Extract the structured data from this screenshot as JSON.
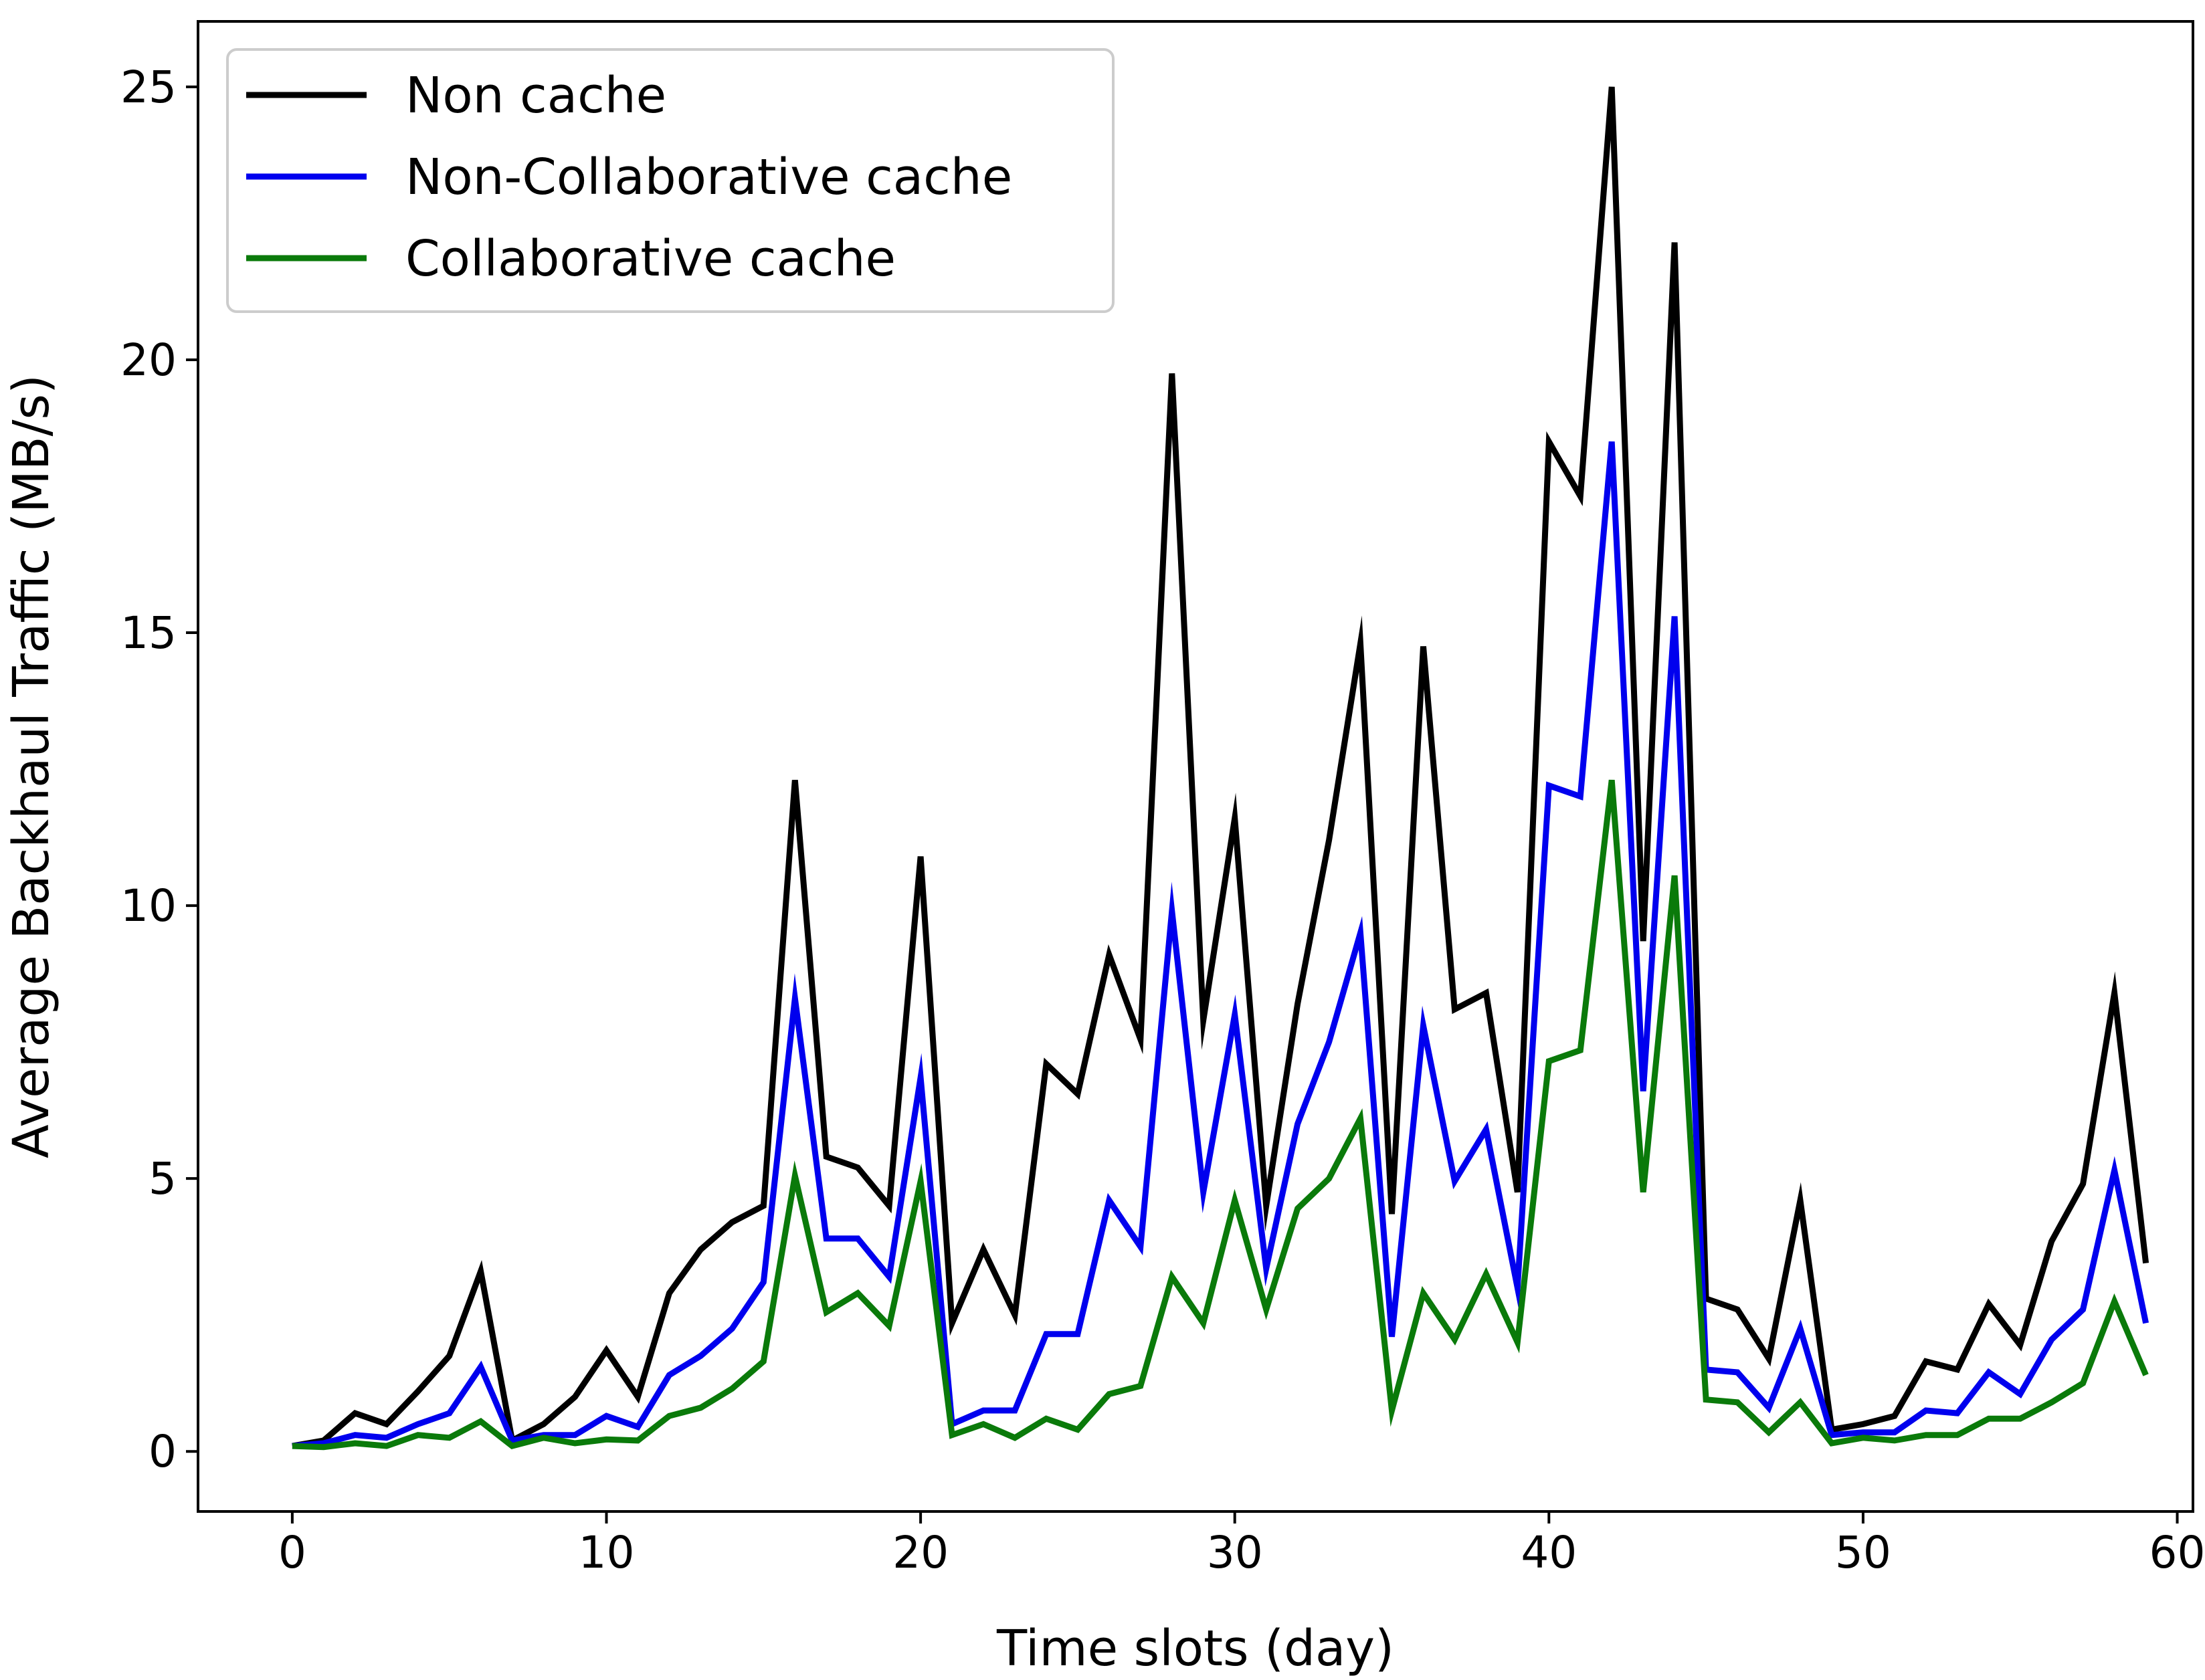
{
  "chart_data": {
    "type": "line",
    "title": "",
    "xlabel": "Time slots (day)",
    "ylabel": "Average Backhaul Traffic (MB/s)",
    "xlim": [
      -3,
      60.5
    ],
    "ylim": [
      -1.1,
      26.2
    ],
    "xticks": [
      0,
      10,
      20,
      30,
      40,
      50,
      60
    ],
    "yticks": [
      0,
      5,
      10,
      15,
      20,
      25
    ],
    "grid": false,
    "legend_position": "top-left",
    "x": [
      0,
      1,
      2,
      3,
      4,
      5,
      6,
      7,
      8,
      9,
      10,
      11,
      12,
      13,
      14,
      15,
      16,
      17,
      18,
      19,
      20,
      21,
      22,
      23,
      24,
      25,
      26,
      27,
      28,
      29,
      30,
      31,
      32,
      33,
      34,
      35,
      36,
      37,
      38,
      39,
      40,
      41,
      42,
      43,
      44,
      45,
      46,
      47,
      48,
      49,
      50,
      51,
      52,
      53,
      54,
      55,
      56,
      57,
      58,
      59
    ],
    "series": [
      {
        "name": "Non cache",
        "color": "#000000",
        "values": [
          0.1,
          0.2,
          0.7,
          0.5,
          1.1,
          1.75,
          3.3,
          0.2,
          0.5,
          1.0,
          1.85,
          1.0,
          2.9,
          3.7,
          4.2,
          4.5,
          12.3,
          5.4,
          5.2,
          4.5,
          10.9,
          2.35,
          3.7,
          2.5,
          7.1,
          6.55,
          9.1,
          7.55,
          19.75,
          7.9,
          11.6,
          4.5,
          8.2,
          11.2,
          14.8,
          4.35,
          14.75,
          8.1,
          8.4,
          4.75,
          18.5,
          17.5,
          25.0,
          9.35,
          22.15,
          2.8,
          2.6,
          1.7,
          4.6,
          0.4,
          0.5,
          0.65,
          1.65,
          1.5,
          2.7,
          1.95,
          3.85,
          4.9,
          8.4,
          3.45
        ]
      },
      {
        "name": "Non-Collaborative cache",
        "color": "#0000ee",
        "values": [
          0.1,
          0.15,
          0.3,
          0.25,
          0.5,
          0.7,
          1.55,
          0.2,
          0.3,
          0.3,
          0.65,
          0.45,
          1.4,
          1.75,
          2.25,
          3.1,
          8.3,
          3.9,
          3.9,
          3.2,
          6.85,
          0.5,
          0.75,
          0.75,
          2.15,
          2.15,
          4.6,
          3.75,
          9.9,
          4.75,
          8.0,
          3.35,
          6.0,
          7.5,
          9.5,
          2.1,
          7.8,
          4.95,
          5.9,
          3.0,
          12.2,
          12.0,
          18.5,
          6.6,
          15.3,
          1.5,
          1.45,
          0.8,
          2.25,
          0.3,
          0.35,
          0.35,
          0.75,
          0.7,
          1.45,
          1.05,
          2.05,
          2.6,
          5.15,
          2.35
        ]
      },
      {
        "name": "Collaborative cache",
        "color": "#0a7a0a",
        "values": [
          0.1,
          0.08,
          0.15,
          0.1,
          0.3,
          0.25,
          0.55,
          0.1,
          0.25,
          0.15,
          0.22,
          0.2,
          0.65,
          0.8,
          1.15,
          1.65,
          5.05,
          2.55,
          2.9,
          2.3,
          4.95,
          0.3,
          0.5,
          0.25,
          0.6,
          0.4,
          1.05,
          1.2,
          3.2,
          2.35,
          4.6,
          2.6,
          4.45,
          5.0,
          6.1,
          0.75,
          2.9,
          2.05,
          3.25,
          2.0,
          7.15,
          7.35,
          12.3,
          4.75,
          10.55,
          0.95,
          0.9,
          0.35,
          0.9,
          0.15,
          0.25,
          0.2,
          0.3,
          0.3,
          0.6,
          0.6,
          0.9,
          1.25,
          2.75,
          1.4
        ]
      }
    ]
  }
}
